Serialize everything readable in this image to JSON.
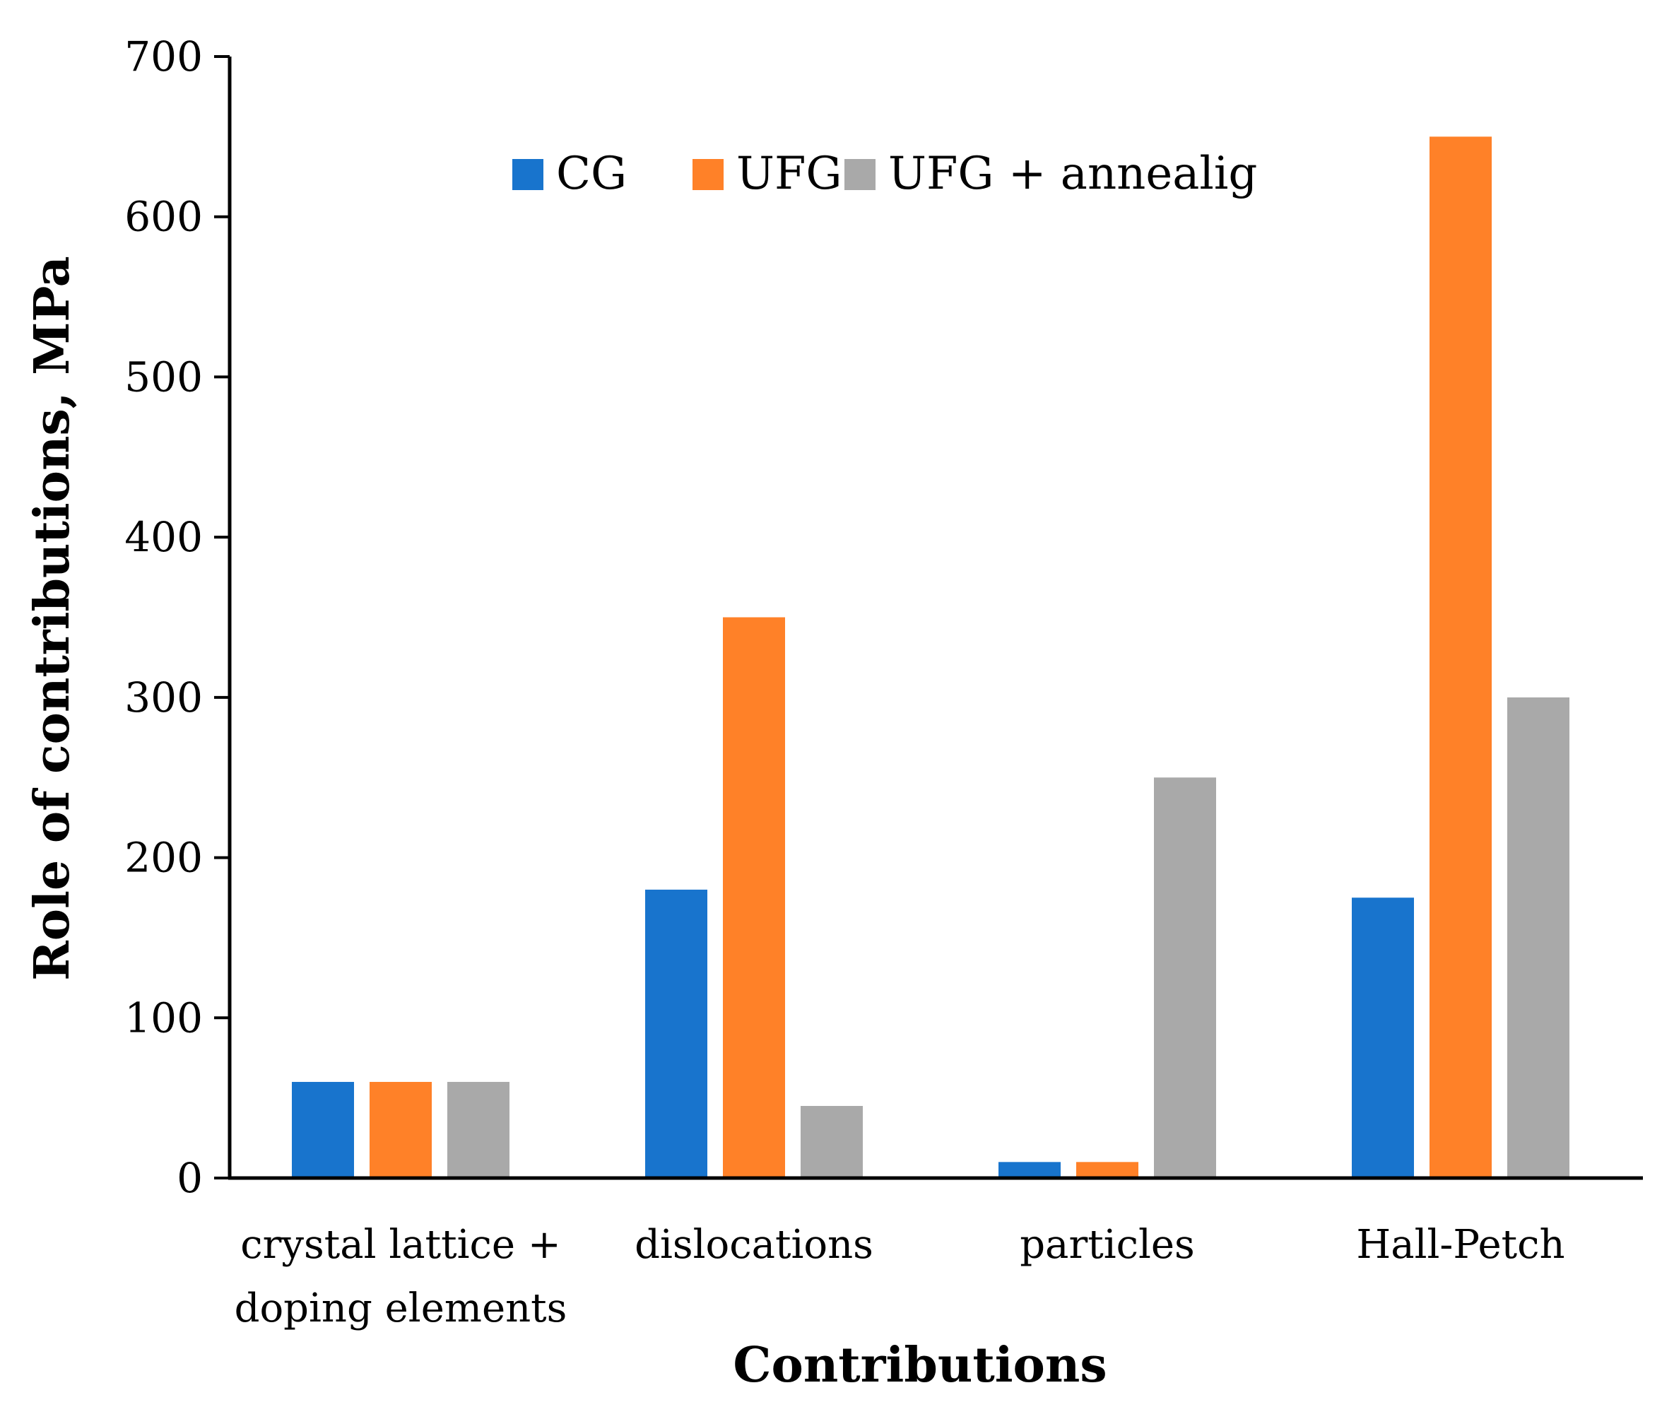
{
  "chart_data": {
    "type": "bar",
    "title": "",
    "xlabel": "Contributions",
    "ylabel": "Role of contributions, MPa",
    "ylim": [
      0,
      700
    ],
    "yticks": [
      0,
      100,
      200,
      300,
      400,
      500,
      600,
      700
    ],
    "grid": false,
    "legend_position": "top-center",
    "categories": [
      [
        "crystal lattice +",
        "doping elements"
      ],
      [
        "dislocations"
      ],
      [
        "particles"
      ],
      [
        "Hall-Petch"
      ]
    ],
    "series": [
      {
        "name": "CG",
        "color": "#1874CD",
        "values": [
          60,
          180,
          10,
          175
        ]
      },
      {
        "name": "UFG",
        "color": "#FF8128",
        "values": [
          60,
          350,
          10,
          650
        ]
      },
      {
        "name": "UFG + annealig",
        "color": "#A9A9A9",
        "values": [
          60,
          45,
          250,
          300
        ]
      }
    ]
  }
}
